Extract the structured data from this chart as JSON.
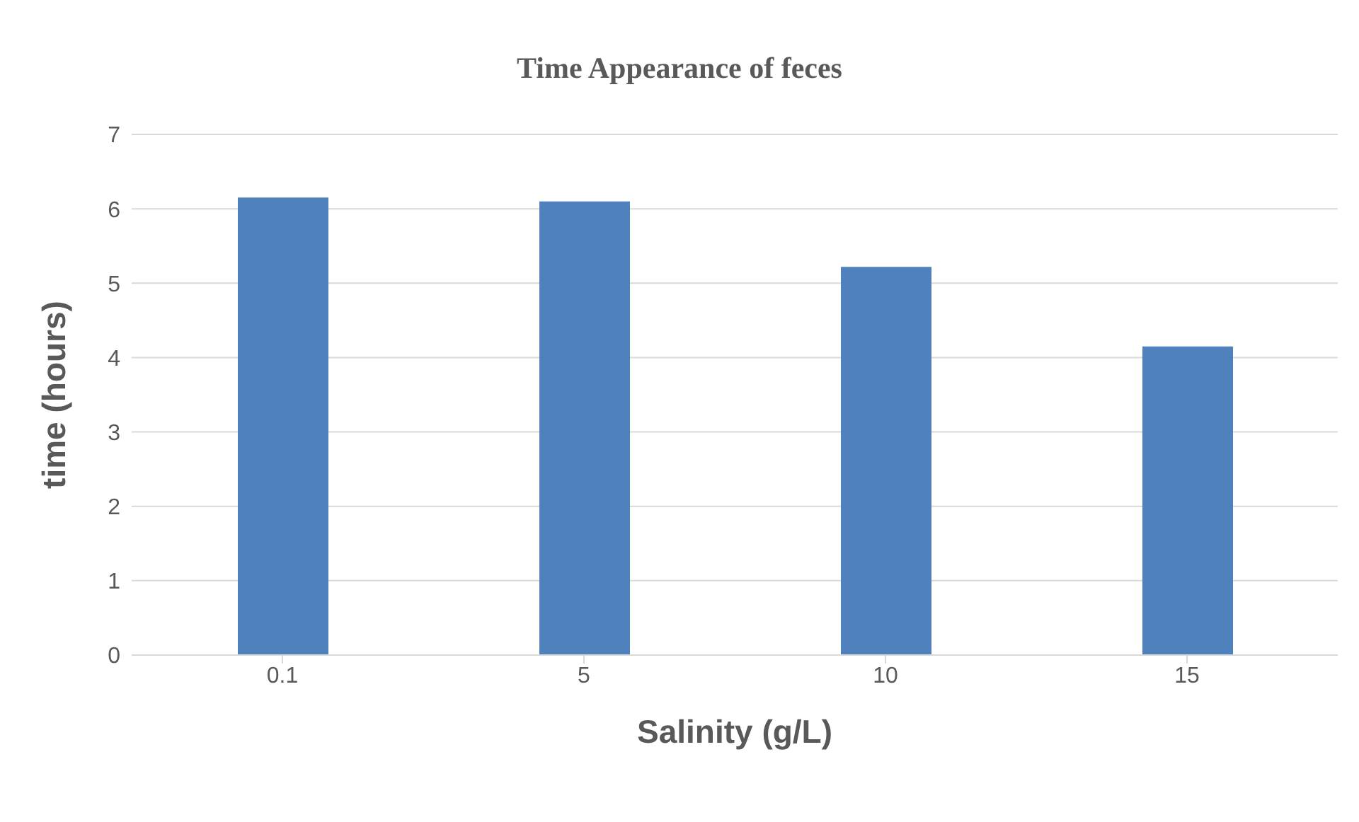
{
  "chart_data": {
    "type": "bar",
    "title": "Time Appearance of feces",
    "xlabel": "Salinity (g/L)",
    "ylabel": "time (hours)",
    "categories": [
      "0.1",
      "5",
      "10",
      "15"
    ],
    "values": [
      6.15,
      6.1,
      5.22,
      4.15
    ],
    "color": "#4f81bd",
    "ylim": [
      0,
      7
    ],
    "yticks": [
      0,
      1,
      2,
      3,
      4,
      5,
      6,
      7
    ],
    "grid": "y",
    "legend": false
  }
}
